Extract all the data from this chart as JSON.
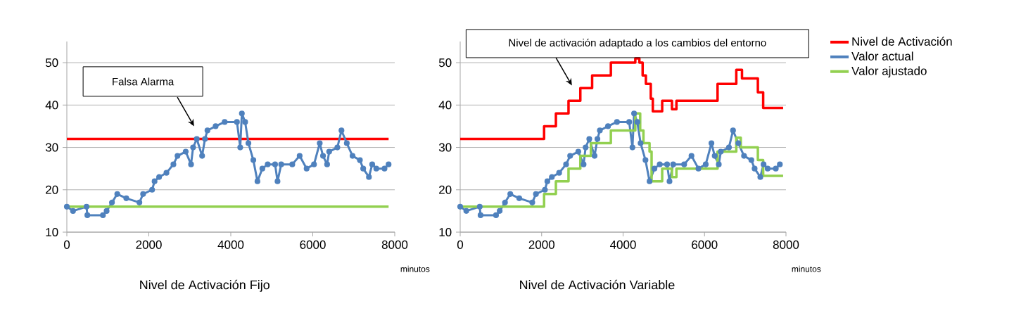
{
  "chart_data": [
    {
      "type": "line",
      "title": "Nivel de Activación Fijo",
      "xlabel": "minutos",
      "xlim": [
        0,
        8000
      ],
      "xticks": [
        0,
        2000,
        4000,
        6000,
        8000
      ],
      "ylim": [
        10,
        55
      ],
      "yticks": [
        10,
        20,
        30,
        40,
        50
      ],
      "grid": "y",
      "annotations": [
        "Falsa Alarma"
      ],
      "series": [
        {
          "color": "#ff0000",
          "x": [
            0,
            7850
          ],
          "values": [
            32,
            32
          ]
        },
        {
          "color": "#4f81bd",
          "marker": "circle",
          "x": [
            0,
            150,
            480,
            500,
            880,
            970,
            1100,
            1230,
            1450,
            1770,
            1860,
            2080,
            2140,
            2250,
            2430,
            2600,
            2700,
            2900,
            3030,
            3080,
            3170,
            3300,
            3370,
            3430,
            3630,
            3850,
            4150,
            4230,
            4270,
            4350,
            4430,
            4550,
            4650,
            4770,
            4900,
            5080,
            5140,
            5230,
            5500,
            5680,
            5850,
            6030,
            6170,
            6250,
            6350,
            6400,
            6600,
            6700,
            6830,
            6970,
            7150,
            7230,
            7370,
            7450,
            7550,
            7750,
            7850
          ],
          "values": [
            16,
            15,
            16,
            14,
            14,
            15,
            17,
            19,
            18,
            17,
            19,
            20,
            22,
            23,
            24,
            26,
            28,
            29,
            26,
            30,
            32,
            28,
            32,
            34,
            35,
            36,
            36,
            30,
            38,
            36,
            31,
            27,
            22,
            25,
            26,
            26,
            22,
            26,
            26,
            28,
            25,
            26,
            31,
            28,
            26,
            29,
            30,
            34,
            31,
            28,
            27,
            25,
            23,
            26,
            25,
            25,
            26
          ]
        },
        {
          "color": "#92d050",
          "x": [
            0,
            7850
          ],
          "values": [
            16,
            16
          ]
        }
      ]
    },
    {
      "type": "line",
      "title": "Nivel de Activación Variable",
      "xlabel": "minutos",
      "xlim": [
        0,
        8000
      ],
      "xticks": [
        0,
        2000,
        4000,
        6000,
        8000
      ],
      "ylim": [
        10,
        55
      ],
      "yticks": [
        10,
        20,
        30,
        40,
        50
      ],
      "grid": "y",
      "legend": "right",
      "annotations": [
        "Nivel de activación adaptado a los cambios del entorno"
      ],
      "series": [
        {
          "name": "Nivel de Activación",
          "color": "#ff0000",
          "type": "step",
          "x": [
            0,
            2060,
            2350,
            2660,
            2950,
            3240,
            3700,
            4300,
            4400,
            4480,
            4560,
            4680,
            4730,
            4960,
            5200,
            5310,
            6320,
            6780,
            6920,
            7310,
            7440,
            7930
          ],
          "values": [
            32,
            35,
            38,
            41,
            44,
            47,
            50,
            51,
            50,
            47,
            45,
            41.5,
            38.5,
            41,
            39,
            41,
            45,
            48.3,
            46.3,
            43,
            39.3,
            39.3
          ]
        },
        {
          "name": "Valor actual",
          "color": "#4f81bd",
          "marker": "circle",
          "x": [
            0,
            150,
            480,
            500,
            880,
            970,
            1100,
            1230,
            1450,
            1770,
            1860,
            2080,
            2140,
            2250,
            2430,
            2600,
            2700,
            2900,
            3030,
            3080,
            3170,
            3300,
            3370,
            3430,
            3630,
            3850,
            4150,
            4230,
            4270,
            4350,
            4430,
            4550,
            4650,
            4770,
            4900,
            5080,
            5140,
            5230,
            5500,
            5680,
            5850,
            6030,
            6170,
            6250,
            6350,
            6400,
            6600,
            6700,
            6830,
            6970,
            7150,
            7230,
            7370,
            7450,
            7550,
            7750,
            7850
          ],
          "values": [
            16,
            15,
            16,
            14,
            14,
            15,
            17,
            19,
            18,
            17,
            19,
            20,
            22,
            23,
            24,
            26,
            28,
            29,
            26,
            30,
            32,
            28,
            32,
            34,
            35,
            36,
            36,
            30,
            38,
            36,
            31,
            27,
            22,
            25,
            26,
            26,
            22,
            26,
            26,
            28,
            25,
            26,
            31,
            28,
            26,
            29,
            30,
            34,
            31,
            28,
            27,
            25,
            23,
            26,
            25,
            25,
            26
          ]
        },
        {
          "name": "Valor ajustado",
          "color": "#92d050",
          "type": "step",
          "x": [
            0,
            2060,
            2350,
            2660,
            2950,
            3210,
            3700,
            4300,
            4420,
            4500,
            4650,
            4700,
            4960,
            5200,
            5310,
            6320,
            6780,
            6890,
            7310,
            7440,
            7930
          ],
          "values": [
            16,
            19,
            22,
            25,
            28,
            31,
            34,
            38,
            34,
            31,
            29,
            22,
            25,
            23,
            25,
            29,
            32.3,
            30,
            27,
            23.3,
            23.3
          ]
        }
      ]
    }
  ]
}
